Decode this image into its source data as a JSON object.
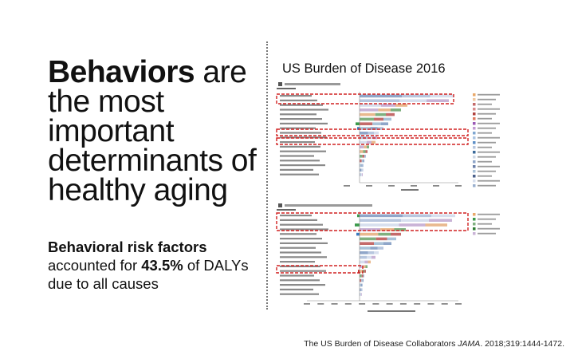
{
  "headline": {
    "emphasis": "Behaviors",
    "rest": " are the most important determinants of healthy aging"
  },
  "subtext": {
    "lead": "Behavioral risk factors",
    "pre": " accounted for ",
    "percent": "43.5%",
    "post": " of DALYs due to all causes"
  },
  "figure_title": "US Burden of Disease 2016",
  "citation": {
    "pre": "The US Burden of Disease Collaborators ",
    "journal": "JAMA",
    "post": ". 2018;319:1444-1472."
  },
  "colors": {
    "highlight": "#d12020",
    "divider": "#777777"
  }
}
